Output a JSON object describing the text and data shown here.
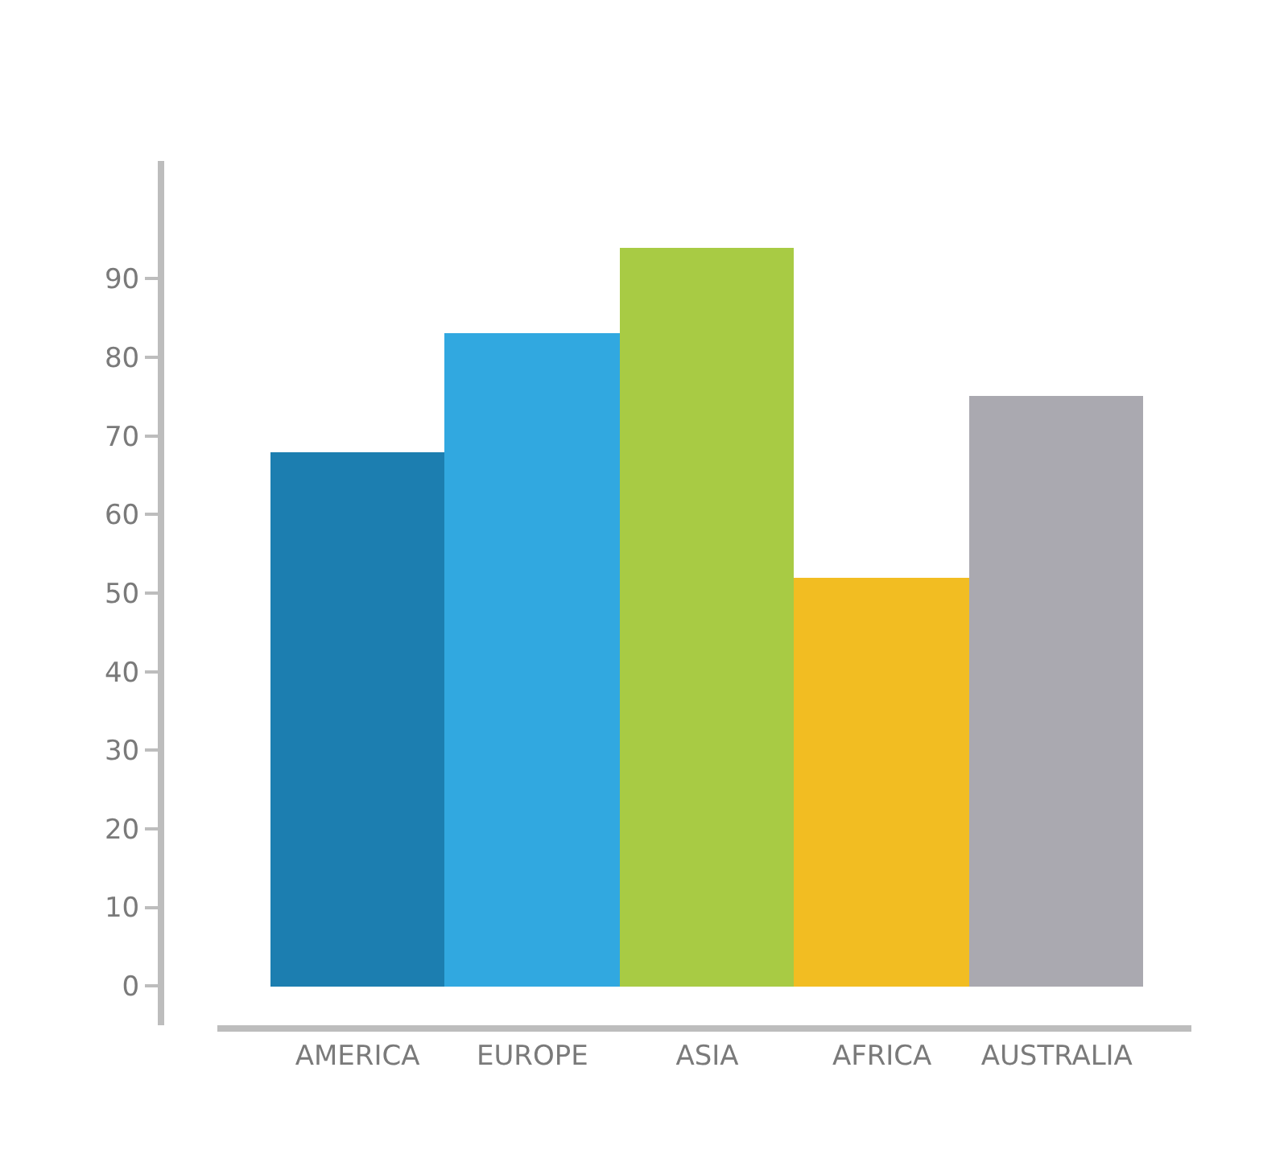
{
  "chart_data": {
    "type": "bar",
    "categories": [
      "AMERICA",
      "EUROPE",
      "ASIA",
      "AFRICA",
      "AUSTRALIA"
    ],
    "values": [
      68,
      83,
      94,
      52,
      75
    ],
    "colors": [
      "#1c7eb0",
      "#31a8e0",
      "#a8cb44",
      "#f2bd22",
      "#aaa9b0"
    ],
    "ylim": [
      -5,
      105
    ],
    "yticks": [
      0,
      10,
      20,
      30,
      40,
      50,
      60,
      70,
      80,
      90
    ],
    "grid": false
  }
}
